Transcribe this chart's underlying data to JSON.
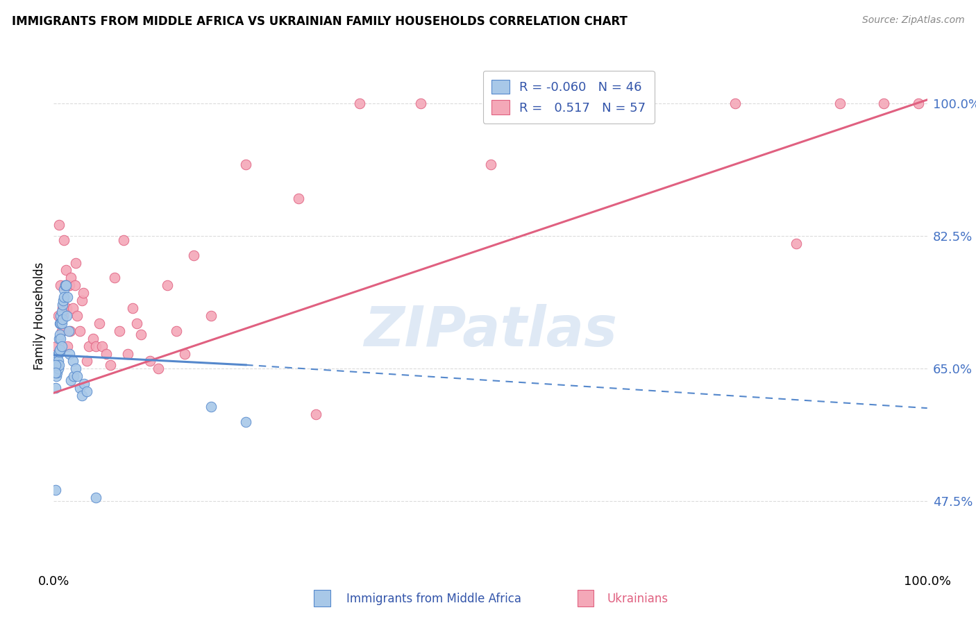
{
  "title": "IMMIGRANTS FROM MIDDLE AFRICA VS UKRAINIAN FAMILY HOUSEHOLDS CORRELATION CHART",
  "source": "Source: ZipAtlas.com",
  "ylabel": "Family Households",
  "watermark": "ZIPatlas",
  "legend": {
    "blue_R": "-0.060",
    "blue_N": "46",
    "pink_R": "0.517",
    "pink_N": "57"
  },
  "ytick_labels": [
    "47.5%",
    "65.0%",
    "82.5%",
    "100.0%"
  ],
  "ytick_values": [
    0.475,
    0.65,
    0.825,
    1.0
  ],
  "xlim": [
    0.0,
    1.0
  ],
  "ylim": [
    0.385,
    1.055
  ],
  "blue_color": "#A8C8E8",
  "pink_color": "#F4A8B8",
  "blue_line_color": "#5588CC",
  "pink_line_color": "#E06080",
  "blue_scatter": {
    "x": [
      0.002,
      0.003,
      0.003,
      0.004,
      0.004,
      0.005,
      0.005,
      0.005,
      0.006,
      0.006,
      0.006,
      0.007,
      0.007,
      0.007,
      0.008,
      0.008,
      0.008,
      0.009,
      0.009,
      0.009,
      0.01,
      0.01,
      0.011,
      0.012,
      0.012,
      0.013,
      0.014,
      0.015,
      0.016,
      0.017,
      0.018,
      0.02,
      0.022,
      0.023,
      0.025,
      0.027,
      0.03,
      0.032,
      0.035,
      0.038,
      0.048,
      0.002,
      0.18,
      0.22,
      0.002,
      0.002
    ],
    "y": [
      0.625,
      0.64,
      0.655,
      0.66,
      0.645,
      0.67,
      0.66,
      0.65,
      0.69,
      0.672,
      0.655,
      0.71,
      0.695,
      0.675,
      0.72,
      0.71,
      0.69,
      0.725,
      0.71,
      0.68,
      0.735,
      0.715,
      0.74,
      0.755,
      0.745,
      0.76,
      0.76,
      0.72,
      0.745,
      0.7,
      0.67,
      0.635,
      0.66,
      0.64,
      0.65,
      0.64,
      0.625,
      0.615,
      0.63,
      0.62,
      0.48,
      0.49,
      0.6,
      0.58,
      0.655,
      0.645
    ]
  },
  "pink_scatter": {
    "x": [
      0.003,
      0.005,
      0.006,
      0.008,
      0.009,
      0.01,
      0.011,
      0.012,
      0.013,
      0.014,
      0.015,
      0.016,
      0.017,
      0.018,
      0.019,
      0.02,
      0.022,
      0.024,
      0.025,
      0.027,
      0.03,
      0.032,
      0.034,
      0.038,
      0.04,
      0.045,
      0.048,
      0.052,
      0.055,
      0.06,
      0.065,
      0.07,
      0.075,
      0.08,
      0.085,
      0.09,
      0.095,
      0.1,
      0.11,
      0.12,
      0.13,
      0.14,
      0.15,
      0.16,
      0.18,
      0.22,
      0.28,
      0.35,
      0.42,
      0.5,
      0.65,
      0.78,
      0.85,
      0.9,
      0.95,
      0.99,
      0.3
    ],
    "y": [
      0.68,
      0.72,
      0.84,
      0.76,
      0.7,
      0.73,
      0.72,
      0.82,
      0.76,
      0.78,
      0.73,
      0.68,
      0.76,
      0.76,
      0.7,
      0.77,
      0.73,
      0.76,
      0.79,
      0.72,
      0.7,
      0.74,
      0.75,
      0.66,
      0.68,
      0.69,
      0.68,
      0.71,
      0.68,
      0.67,
      0.655,
      0.77,
      0.7,
      0.82,
      0.67,
      0.73,
      0.71,
      0.695,
      0.66,
      0.65,
      0.76,
      0.7,
      0.67,
      0.8,
      0.72,
      0.92,
      0.875,
      1.0,
      1.0,
      0.92,
      1.0,
      1.0,
      0.815,
      1.0,
      1.0,
      1.0,
      0.59
    ]
  },
  "blue_line": {
    "x_solid_start": 0.0,
    "x_solid_end": 0.22,
    "y_solid_start": 0.668,
    "y_solid_end": 0.655,
    "x_dash_start": 0.22,
    "x_dash_end": 1.0,
    "y_dash_start": 0.655,
    "y_dash_end": 0.598
  },
  "pink_line": {
    "x_start": 0.0,
    "x_end": 1.0,
    "y_start": 0.618,
    "y_end": 1.005
  },
  "background_color": "#FFFFFF",
  "grid_color": "#CCCCCC"
}
